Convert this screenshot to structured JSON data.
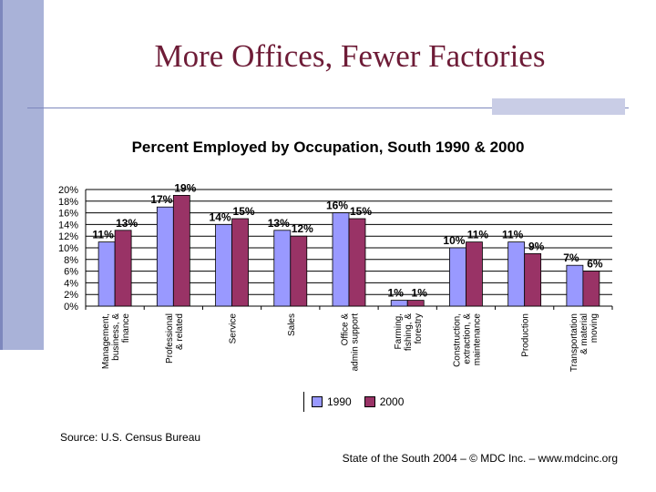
{
  "slide": {
    "title": "More Offices, Fewer Factories",
    "source": "Source: U.S. Census Bureau",
    "footer": "State of the South 2004 – © MDC Inc. – www.mdcinc.org"
  },
  "colors": {
    "series_1990": "#9999ff",
    "series_2000": "#993366",
    "title": "#6e1c37",
    "accent": "#a9b2d8"
  },
  "chart_data": {
    "type": "bar",
    "title": "Percent Employed by Occupation, South 1990 & 2000",
    "categories": [
      [
        "Management,",
        "business, &",
        "finance"
      ],
      [
        "Professional",
        "& related"
      ],
      [
        "Service"
      ],
      [
        "Sales"
      ],
      [
        "Office &",
        "admin support"
      ],
      [
        "Farming,",
        "fishing, &",
        "forestry"
      ],
      [
        "Construction,",
        "extraction, &",
        "maintenance"
      ],
      [
        "Production"
      ],
      [
        "Transportation",
        "& material",
        "moving"
      ]
    ],
    "series": [
      {
        "name": "1990",
        "values": [
          11,
          17,
          14,
          13,
          16,
          1,
          10,
          11,
          7
        ],
        "labels": [
          "11%",
          "17%",
          "14%",
          "13%",
          "16%",
          "1%",
          "10%",
          "11%",
          "7%"
        ]
      },
      {
        "name": "2000",
        "values": [
          13,
          19,
          15,
          12,
          15,
          1,
          11,
          9,
          6
        ],
        "labels": [
          "13%",
          "19%",
          "15%",
          "12%",
          "15%",
          "1%",
          "11%",
          "9%",
          "6%"
        ]
      }
    ],
    "y_ticks": [
      "0%",
      "2%",
      "4%",
      "6%",
      "8%",
      "10%",
      "12%",
      "14%",
      "16%",
      "18%",
      "20%"
    ],
    "ylim": [
      0,
      20
    ],
    "grid": "horizontal",
    "legend_position": "bottom"
  }
}
